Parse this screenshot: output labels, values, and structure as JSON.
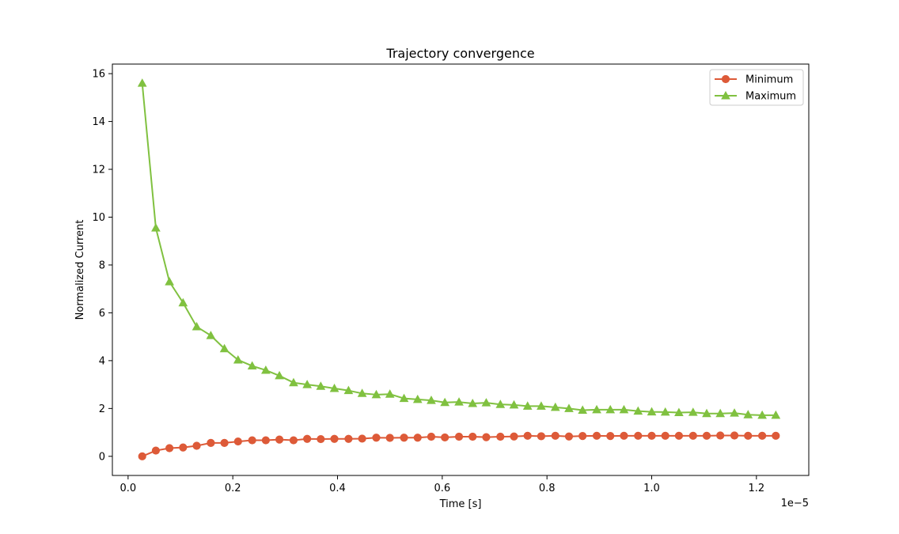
{
  "chart_data": {
    "type": "line",
    "title": "Trajectory convergence",
    "xlabel": "Time [s]",
    "ylabel": "Normalized Current",
    "x_offset_label": "1e−5",
    "xlim": [
      -0.03,
      1.3
    ],
    "ylim": [
      -0.8,
      16.4
    ],
    "xticks": [
      0.0,
      0.2,
      0.4,
      0.6,
      0.8,
      1.0,
      1.2
    ],
    "xtick_labels": [
      "0.0",
      "0.2",
      "0.4",
      "0.6",
      "0.8",
      "1.0",
      "1.2"
    ],
    "yticks": [
      0,
      2,
      4,
      6,
      8,
      10,
      12,
      14,
      16
    ],
    "ytick_labels": [
      "0",
      "2",
      "4",
      "6",
      "8",
      "10",
      "12",
      "14",
      "16"
    ],
    "grid": false,
    "legend_position": "top-right",
    "x": [
      0.027,
      0.053,
      0.079,
      0.105,
      0.131,
      0.158,
      0.184,
      0.21,
      0.237,
      0.263,
      0.289,
      0.316,
      0.342,
      0.368,
      0.394,
      0.421,
      0.447,
      0.474,
      0.5,
      0.527,
      0.553,
      0.579,
      0.605,
      0.632,
      0.658,
      0.684,
      0.711,
      0.737,
      0.763,
      0.789,
      0.816,
      0.842,
      0.868,
      0.895,
      0.921,
      0.947,
      0.974,
      1.0,
      1.026,
      1.052,
      1.079,
      1.105,
      1.131,
      1.158,
      1.184,
      1.211,
      1.237
    ],
    "series": [
      {
        "name": "Minimum",
        "color": "#dd5a38",
        "marker": "circle",
        "values": [
          0.0,
          0.24,
          0.34,
          0.37,
          0.44,
          0.56,
          0.56,
          0.62,
          0.67,
          0.67,
          0.7,
          0.67,
          0.73,
          0.72,
          0.73,
          0.73,
          0.74,
          0.78,
          0.77,
          0.78,
          0.78,
          0.82,
          0.79,
          0.82,
          0.82,
          0.8,
          0.82,
          0.83,
          0.86,
          0.84,
          0.86,
          0.83,
          0.85,
          0.86,
          0.85,
          0.86,
          0.86,
          0.86,
          0.86,
          0.86,
          0.86,
          0.86,
          0.87,
          0.87,
          0.86,
          0.86,
          0.86
        ]
      },
      {
        "name": "Maximum",
        "color": "#80c140",
        "marker": "triangle",
        "values": [
          15.6,
          9.55,
          7.3,
          6.42,
          5.42,
          5.05,
          4.5,
          4.03,
          3.78,
          3.6,
          3.37,
          3.08,
          3.0,
          2.93,
          2.84,
          2.75,
          2.63,
          2.58,
          2.6,
          2.42,
          2.38,
          2.34,
          2.25,
          2.27,
          2.21,
          2.24,
          2.17,
          2.15,
          2.1,
          2.1,
          2.05,
          2.0,
          1.93,
          1.95,
          1.95,
          1.95,
          1.89,
          1.86,
          1.85,
          1.83,
          1.84,
          1.79,
          1.79,
          1.81,
          1.74,
          1.72,
          1.72
        ]
      }
    ]
  }
}
